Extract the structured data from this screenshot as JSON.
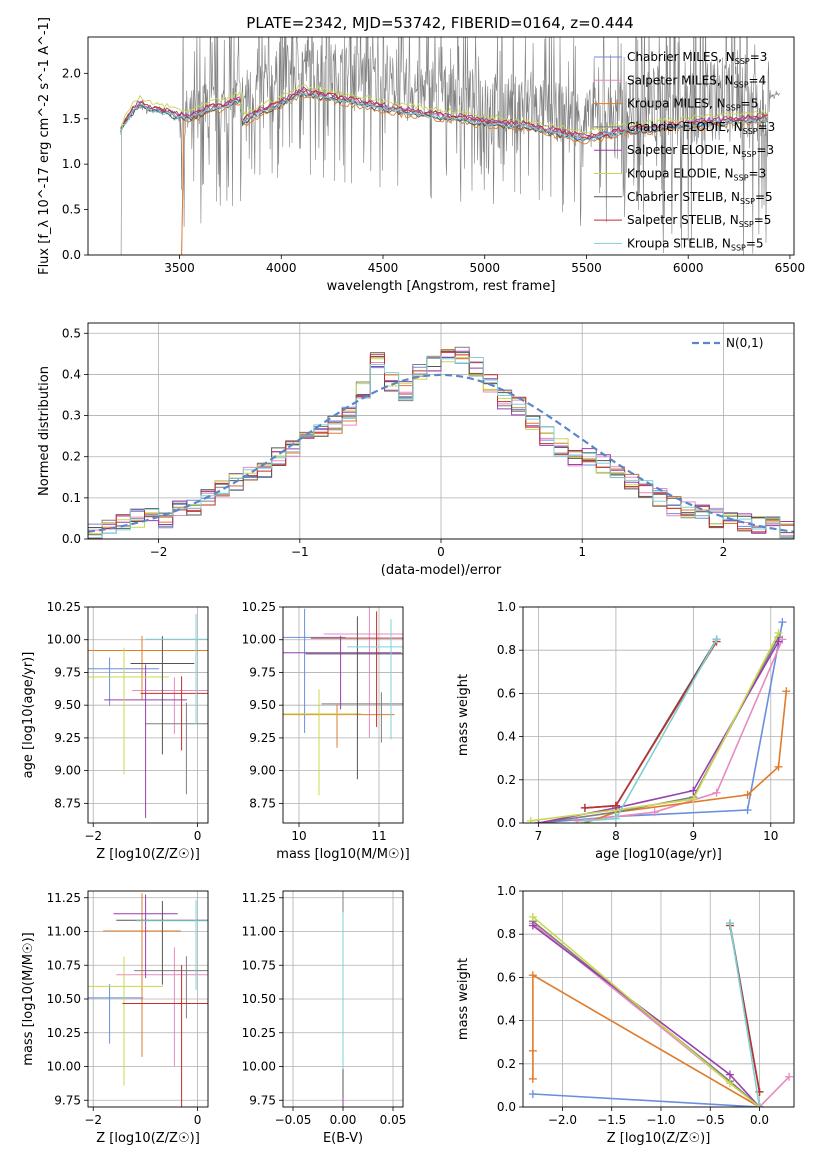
{
  "figure_title": "PLATE=2342, MJD=53742, FIBERID=0164, z=0.444",
  "colors": [
    "#6a8fdd",
    "#e88bbf",
    "#e07b2a",
    "#7f7f7f",
    "#9a3fb0",
    "#c8d84f",
    "#555555",
    "#c0302f",
    "#7fd1d4"
  ],
  "chart_data": [
    {
      "id": "spectrum",
      "type": "line",
      "title": "PLATE=2342, MJD=53742, FIBERID=0164, z=0.444",
      "xlabel": "wavelength [Angstrom, rest frame]",
      "ylabel": "Flux [f_λ 10^-17 erg cm^-2 s^-1 A^-1]",
      "xlim": [
        3050,
        6520
      ],
      "ylim": [
        0,
        2.4
      ],
      "xticks": [
        3500,
        4000,
        4500,
        5000,
        5500,
        6000,
        6500
      ],
      "yticks": [
        0.0,
        0.5,
        1.0,
        1.5,
        2.0
      ],
      "grid": false,
      "legend_position": "top-right",
      "legend": [
        "Chabrier MILES, N_SSP=3",
        "Salpeter MILES, N_SSP=4",
        "Kroupa MILES, N_SSP=5",
        "Chabrier ELODIE, N_SSP=3",
        "Salpeter ELODIE, N_SSP=3",
        "Kroupa ELODIE, N_SSP=3",
        "Chabrier STELIB, N_SSP=5",
        "Salpeter STELIB, N_SSP=5",
        "Kroupa STELIB, N_SSP=5"
      ],
      "data_x": [
        3210,
        3230,
        3260,
        3300,
        3350,
        3400,
        3450,
        3500,
        3550,
        3600,
        3650,
        3700,
        3800,
        3900,
        4000,
        4100,
        4200,
        4300,
        4400,
        4500,
        4600,
        4700,
        4800,
        4900,
        5000,
        5100,
        5200,
        5300,
        5400,
        5500,
        5600,
        5700,
        5800,
        5900,
        6000,
        6100,
        6200,
        6300,
        6400
      ],
      "data_y": [
        1.35,
        1.45,
        1.55,
        1.65,
        1.6,
        1.58,
        1.55,
        1.52,
        1.5,
        1.55,
        1.6,
        1.62,
        1.7,
        1.85,
        1.95,
        2.1,
        2.05,
        2.0,
        1.95,
        1.9,
        1.85,
        1.82,
        1.78,
        1.75,
        1.7,
        1.68,
        1.66,
        1.6,
        1.55,
        1.5,
        1.55,
        1.6,
        1.62,
        1.65,
        1.68,
        1.7,
        1.72,
        1.74,
        1.76
      ]
    },
    {
      "id": "residuals",
      "type": "line",
      "xlabel": "(data-model)/error",
      "ylabel": "Normed distribution",
      "xlim": [
        -2.5,
        2.5
      ],
      "ylim": [
        0,
        0.525
      ],
      "xticks": [
        -2,
        -1,
        0,
        1,
        2
      ],
      "yticks": [
        0.0,
        0.1,
        0.2,
        0.3,
        0.4,
        0.5
      ],
      "grid": true,
      "legend_position": "top-right",
      "legend": [
        "N(0,1)"
      ],
      "hist_x": [
        -2.5,
        -2.4,
        -2.3,
        -2.2,
        -2.1,
        -2.0,
        -1.9,
        -1.8,
        -1.7,
        -1.6,
        -1.5,
        -1.4,
        -1.3,
        -1.2,
        -1.1,
        -1.0,
        -0.9,
        -0.8,
        -0.7,
        -0.6,
        -0.5,
        -0.4,
        -0.3,
        -0.2,
        -0.1,
        0.0,
        0.1,
        0.2,
        0.3,
        0.4,
        0.5,
        0.6,
        0.7,
        0.8,
        0.9,
        1.0,
        1.1,
        1.2,
        1.3,
        1.4,
        1.5,
        1.6,
        1.7,
        1.8,
        1.9,
        2.0,
        2.1,
        2.2,
        2.3,
        2.4
      ],
      "hist_y": [
        0.02,
        0.03,
        0.04,
        0.05,
        0.06,
        0.05,
        0.07,
        0.08,
        0.1,
        0.12,
        0.14,
        0.15,
        0.17,
        0.2,
        0.22,
        0.24,
        0.26,
        0.28,
        0.3,
        0.36,
        0.44,
        0.38,
        0.36,
        0.4,
        0.42,
        0.44,
        0.45,
        0.42,
        0.38,
        0.34,
        0.32,
        0.28,
        0.25,
        0.22,
        0.2,
        0.2,
        0.18,
        0.16,
        0.14,
        0.12,
        0.1,
        0.08,
        0.07,
        0.06,
        0.05,
        0.04,
        0.04,
        0.03,
        0.03,
        0.02
      ]
    },
    {
      "id": "age-vs-Z",
      "type": "scatter",
      "xlabel": "Z [log10(Z/Z☉)]",
      "ylabel": "age  [log10(age/yr)]",
      "xlim": [
        -2.1,
        0.2
      ],
      "ylim": [
        8.6,
        10.25
      ],
      "xticks": [
        -2,
        0
      ],
      "yticks": [
        8.75,
        9.0,
        9.25,
        9.5,
        9.75,
        10.0,
        10.25
      ],
      "grid": true
    },
    {
      "id": "age-vs-mass",
      "type": "scatter",
      "xlabel": "mass [log10(M/M☉)]",
      "ylabel": "",
      "xlim": [
        9.8,
        11.3
      ],
      "ylim": [
        8.6,
        10.25
      ],
      "xticks": [
        10,
        11
      ],
      "yticks": [
        8.75,
        9.0,
        9.25,
        9.5,
        9.75,
        10.0,
        10.25
      ],
      "grid": true
    },
    {
      "id": "massweight-vs-age",
      "type": "line",
      "xlabel": "age  [log10(age/yr)]",
      "ylabel": "mass weight",
      "xlim": [
        6.8,
        10.3
      ],
      "ylim": [
        0,
        1.0
      ],
      "xticks": [
        7,
        8,
        9,
        10
      ],
      "yticks": [
        0.0,
        0.2,
        0.4,
        0.6,
        0.8,
        1.0
      ],
      "grid": true,
      "series": [
        {
          "x": [
            7.0,
            8.0,
            9.7,
            10.15
          ],
          "y": [
            0.0,
            0.03,
            0.06,
            0.93
          ]
        },
        {
          "x": [
            7.5,
            8.5,
            9.3,
            10.15
          ],
          "y": [
            0.01,
            0.05,
            0.14,
            0.85
          ]
        },
        {
          "x": [
            7.6,
            8.0,
            9.7,
            10.1,
            10.2
          ],
          "y": [
            0.0,
            0.05,
            0.13,
            0.26,
            0.61
          ]
        },
        {
          "x": [
            7.0,
            8.0,
            9.0,
            10.1
          ],
          "y": [
            0.0,
            0.05,
            0.12,
            0.86
          ]
        },
        {
          "x": [
            7.0,
            8.0,
            9.0,
            10.1
          ],
          "y": [
            0.0,
            0.07,
            0.15,
            0.84
          ]
        },
        {
          "x": [
            6.9,
            8.0,
            9.0,
            10.1
          ],
          "y": [
            0.01,
            0.06,
            0.11,
            0.88
          ]
        },
        {
          "x": [
            7.6,
            8.0,
            9.3
          ],
          "y": [
            0.07,
            0.08,
            0.85
          ]
        },
        {
          "x": [
            7.6,
            8.0,
            9.3
          ],
          "y": [
            0.07,
            0.08,
            0.84
          ]
        },
        {
          "x": [
            7.6,
            8.0,
            9.3
          ],
          "y": [
            0.01,
            0.02,
            0.85
          ]
        }
      ]
    },
    {
      "id": "mass-vs-Z",
      "type": "scatter",
      "xlabel": "Z [log10(Z/Z☉)]",
      "ylabel": "mass [log10(M/M☉)]",
      "xlim": [
        -2.1,
        0.2
      ],
      "ylim": [
        9.7,
        11.3
      ],
      "xticks": [
        -2,
        0
      ],
      "yticks": [
        9.75,
        10.0,
        10.25,
        10.5,
        10.75,
        11.0,
        11.25
      ],
      "grid": true
    },
    {
      "id": "mass-vs-EBV",
      "type": "scatter",
      "xlabel": "E(B-V)",
      "ylabel": "",
      "xlim": [
        -0.06,
        0.06
      ],
      "ylim": [
        9.7,
        11.3
      ],
      "xticks": [
        -0.05,
        0.0,
        0.05
      ],
      "yticks": [
        9.75,
        10.0,
        10.25,
        10.5,
        10.75,
        11.0,
        11.25
      ],
      "grid": true
    },
    {
      "id": "massweight-vs-Z",
      "type": "line",
      "xlabel": "Z [log10(Z/Z☉)]",
      "ylabel": "mass weight",
      "xlim": [
        -2.4,
        0.35
      ],
      "ylim": [
        0,
        1.0
      ],
      "xticks": [
        -2.0,
        -1.5,
        -1.0,
        -0.5,
        0.0
      ],
      "yticks": [
        0.0,
        0.2,
        0.4,
        0.6,
        0.8,
        1.0
      ],
      "grid": true,
      "series": [
        {
          "x": [
            -2.3,
            0.0
          ],
          "y": [
            0.06,
            0.0
          ]
        },
        {
          "x": [
            -2.3,
            0.0,
            0.3
          ],
          "y": [
            0.85,
            0.0,
            0.14
          ]
        },
        {
          "x": [
            -2.3,
            -2.3,
            -2.3,
            0.0
          ],
          "y": [
            0.26,
            0.13,
            0.61,
            0.0
          ]
        },
        {
          "x": [
            -2.3,
            -0.3,
            0.0
          ],
          "y": [
            0.86,
            0.12,
            0.0
          ]
        },
        {
          "x": [
            -2.3,
            -0.3,
            0.0
          ],
          "y": [
            0.84,
            0.15,
            0.0
          ]
        },
        {
          "x": [
            -2.3,
            -0.3,
            0.0
          ],
          "y": [
            0.88,
            0.11,
            0.0
          ]
        },
        {
          "x": [
            -0.3,
            0.0
          ],
          "y": [
            0.85,
            0.07
          ]
        },
        {
          "x": [
            -0.3,
            0.0
          ],
          "y": [
            0.84,
            0.07
          ]
        },
        {
          "x": [
            -0.3,
            0.0
          ],
          "y": [
            0.85,
            0.0
          ]
        }
      ]
    }
  ]
}
